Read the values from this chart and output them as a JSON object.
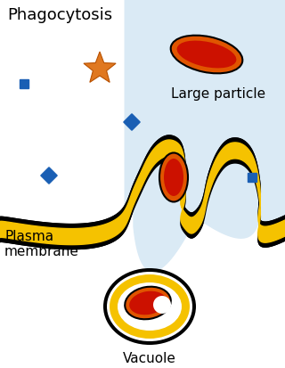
{
  "title": "Phagocytosis",
  "label_large_particle": "Large particle",
  "label_plasma_membrane": "Plasma\nmembrane",
  "label_vacuole": "Vacuole",
  "bg_color": "#ffffff",
  "cell_bg_color": "#daeaf5",
  "membrane_yellow": "#f5c200",
  "membrane_outline": "#111111",
  "particle_red": "#cc1100",
  "particle_orange": "#e05500",
  "blue_color": "#1a5fb4",
  "star_color": "#e07820",
  "title_fontsize": 13,
  "label_fontsize": 11
}
